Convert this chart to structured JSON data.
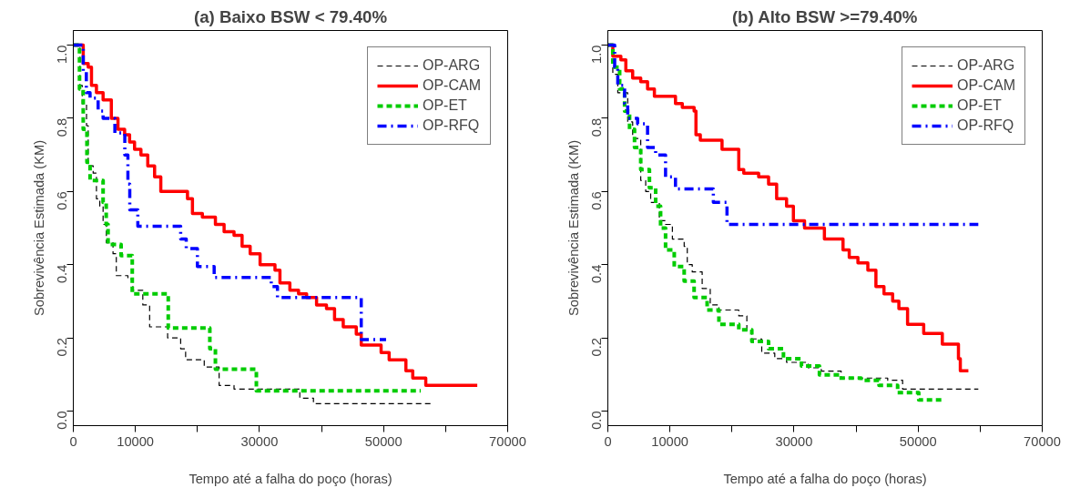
{
  "chart_data": [
    {
      "type": "step",
      "title": "(a) Baixo BSW < 79.40%",
      "xlabel": "Tempo até a falha do poço (horas)",
      "ylabel": "Sobrevivência Estimada (KM)",
      "xlim": [
        0,
        70000
      ],
      "ylim": [
        -0.04,
        1.04
      ],
      "xticks": [
        0,
        10000,
        {
          "value": 20000,
          "label": null
        },
        30000,
        {
          "value": 40000,
          "label": null
        },
        50000,
        {
          "value": 60000,
          "label": null
        },
        70000
      ],
      "yticks": [
        {
          "value": 0,
          "label": "0.0"
        },
        {
          "value": 0.2,
          "label": "0.2"
        },
        {
          "value": 0.4,
          "label": "0.4"
        },
        {
          "value": 0.6,
          "label": "0.6"
        },
        {
          "value": 0.8,
          "label": "0.8"
        },
        {
          "value": 1,
          "label": "1.0"
        }
      ],
      "grid": false,
      "legend": "top right",
      "series": [
        {
          "name": "OP-ARG",
          "color": "#000000",
          "line_style": "dashed",
          "x": [
            0,
            1070,
            1440,
            2130,
            2400,
            3200,
            3730,
            4270,
            4800,
            5330,
            6400,
            6930,
            8800,
            9600,
            11200,
            12300,
            15200,
            17300,
            18100,
            21100,
            23500,
            25900,
            36500,
            38700,
            57600
          ],
          "values": [
            1.0,
            0.89,
            0.84,
            0.78,
            0.67,
            0.65,
            0.58,
            0.56,
            0.51,
            0.46,
            0.43,
            0.37,
            0.36,
            0.33,
            0.29,
            0.23,
            0.2,
            0.17,
            0.14,
            0.12,
            0.07,
            0.06,
            0.035,
            0.02,
            0.02
          ]
        },
        {
          "name": "OP-CAM",
          "color": "#ff0000",
          "line_style": "solid",
          "x": [
            0,
            1600,
            2400,
            2930,
            3730,
            4800,
            6130,
            7200,
            8270,
            9070,
            9870,
            10900,
            12000,
            13100,
            14100,
            18400,
            19200,
            20800,
            22900,
            24300,
            25900,
            27200,
            28500,
            30100,
            32500,
            33300,
            34900,
            36300,
            37600,
            39200,
            40800,
            42100,
            43500,
            45600,
            46400,
            49600,
            50900,
            53600,
            54700,
            56800,
            65100
          ],
          "values": [
            1.0,
            0.95,
            0.94,
            0.89,
            0.87,
            0.85,
            0.8,
            0.77,
            0.755,
            0.735,
            0.715,
            0.7,
            0.67,
            0.64,
            0.6,
            0.58,
            0.54,
            0.53,
            0.51,
            0.49,
            0.48,
            0.45,
            0.43,
            0.4,
            0.385,
            0.35,
            0.33,
            0.32,
            0.31,
            0.29,
            0.28,
            0.25,
            0.23,
            0.21,
            0.18,
            0.16,
            0.14,
            0.11,
            0.09,
            0.07,
            0.07
          ]
        },
        {
          "name": "OP-ET",
          "color": "#00cc00",
          "line_style": "dashed",
          "x": [
            0,
            1000,
            1600,
            2200,
            2700,
            4800,
            5300,
            5600,
            7700,
            9500,
            15300,
            22000,
            22900,
            29500,
            56000
          ],
          "values": [
            1.0,
            0.88,
            0.77,
            0.68,
            0.63,
            0.57,
            0.51,
            0.455,
            0.425,
            0.32,
            0.227,
            0.17,
            0.114,
            0.055,
            0.055
          ]
        },
        {
          "name": "OP-RFQ",
          "color": "#0000ff",
          "line_style": "dashdot",
          "x": [
            0,
            1600,
            2100,
            2700,
            4000,
            4800,
            6700,
            8300,
            8800,
            9100,
            10400,
            17300,
            18200,
            20000,
            22700,
            31900,
            32900,
            46400,
            50400
          ],
          "values": [
            1.0,
            0.93,
            0.87,
            0.855,
            0.82,
            0.8,
            0.76,
            0.7,
            0.62,
            0.55,
            0.505,
            0.47,
            0.444,
            0.395,
            0.365,
            0.34,
            0.31,
            0.195,
            0.195
          ]
        }
      ]
    },
    {
      "type": "step",
      "title": "(b) Alto BSW >=79.40%",
      "xlabel": "Tempo até a falha do poço (horas)",
      "ylabel": "Sobrevivência Estimada (KM)",
      "xlim": [
        0,
        70000
      ],
      "ylim": [
        -0.04,
        1.04
      ],
      "xticks": [
        0,
        10000,
        {
          "value": 20000,
          "label": null
        },
        30000,
        {
          "value": 40000,
          "label": null
        },
        50000,
        {
          "value": 60000,
          "label": null
        },
        70000
      ],
      "yticks": [
        {
          "value": 0,
          "label": "0.0"
        },
        {
          "value": 0.2,
          "label": "0.2"
        },
        {
          "value": 0.4,
          "label": "0.4"
        },
        {
          "value": 0.6,
          "label": "0.6"
        },
        {
          "value": 0.8,
          "label": "0.8"
        },
        {
          "value": 1,
          "label": "1.0"
        }
      ],
      "grid": false,
      "legend": "top right",
      "series": [
        {
          "name": "OP-ARG",
          "color": "#000000",
          "line_style": "dashed",
          "x": [
            0,
            800,
            1600,
            3200,
            4000,
            5300,
            6100,
            6900,
            8300,
            9300,
            10400,
            12300,
            12800,
            13600,
            15200,
            16500,
            17900,
            21100,
            22400,
            23200,
            24800,
            26900,
            28800,
            32300,
            34400,
            37600,
            45100,
            47500,
            59700
          ],
          "values": [
            1.0,
            0.92,
            0.87,
            0.79,
            0.745,
            0.63,
            0.6,
            0.57,
            0.52,
            0.51,
            0.47,
            0.45,
            0.4,
            0.38,
            0.335,
            0.29,
            0.276,
            0.26,
            0.22,
            0.197,
            0.158,
            0.143,
            0.133,
            0.118,
            0.109,
            0.09,
            0.084,
            0.06,
            0.06
          ]
        },
        {
          "name": "OP-CAM",
          "color": "#ff0000",
          "line_style": "solid",
          "x": [
            0,
            800,
            2100,
            2900,
            4000,
            5300,
            6400,
            7500,
            10900,
            12000,
            13900,
            14200,
            14900,
            18400,
            21100,
            21900,
            24300,
            25900,
            27200,
            28800,
            29900,
            31700,
            34900,
            37900,
            38900,
            40300,
            41900,
            43200,
            44500,
            45900,
            46900,
            48300,
            50900,
            53900,
            56500,
            56800,
            58100
          ],
          "values": [
            1.0,
            0.97,
            0.96,
            0.93,
            0.91,
            0.9,
            0.88,
            0.86,
            0.84,
            0.83,
            0.82,
            0.755,
            0.74,
            0.715,
            0.66,
            0.65,
            0.64,
            0.62,
            0.58,
            0.56,
            0.52,
            0.5,
            0.47,
            0.44,
            0.42,
            0.405,
            0.385,
            0.34,
            0.32,
            0.3,
            0.28,
            0.237,
            0.212,
            0.183,
            0.143,
            0.11,
            0.11
          ]
        },
        {
          "name": "OP-ET",
          "color": "#00cc00",
          "line_style": "dashed",
          "x": [
            0,
            800,
            1900,
            2700,
            3500,
            4300,
            5300,
            6700,
            7700,
            8500,
            9300,
            10700,
            12300,
            13900,
            16000,
            17900,
            21100,
            23200,
            25900,
            28300,
            31200,
            34100,
            37300,
            40800,
            43700,
            46700,
            50100,
            54100
          ],
          "values": [
            1.0,
            0.94,
            0.88,
            0.82,
            0.77,
            0.72,
            0.66,
            0.61,
            0.56,
            0.5,
            0.44,
            0.395,
            0.355,
            0.31,
            0.276,
            0.237,
            0.222,
            0.19,
            0.17,
            0.143,
            0.123,
            0.099,
            0.09,
            0.084,
            0.07,
            0.05,
            0.03,
            0.03
          ]
        },
        {
          "name": "OP-RFQ",
          "color": "#0000ff",
          "line_style": "dashdot",
          "x": [
            0,
            1100,
            1600,
            2700,
            3200,
            4800,
            6400,
            7700,
            9300,
            10900,
            17000,
            19200,
            59700
          ],
          "values": [
            1.0,
            0.94,
            0.89,
            0.84,
            0.8,
            0.785,
            0.72,
            0.7,
            0.64,
            0.607,
            0.57,
            0.51,
            0.51
          ]
        }
      ]
    }
  ]
}
